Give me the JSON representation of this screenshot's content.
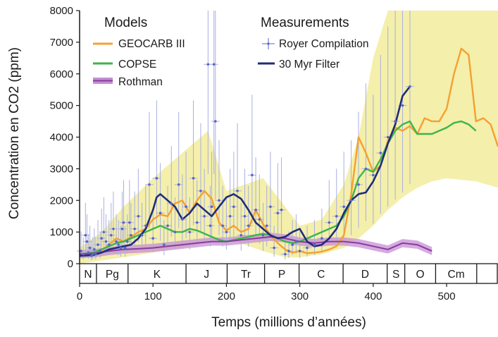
{
  "chart_data": {
    "type": "line",
    "title": "",
    "xlabel": "Temps (millions d’années)",
    "ylabel": "Concentration en CO2 (ppm)",
    "xlim": [
      0,
      570
    ],
    "ylim": [
      0,
      8000
    ],
    "x_ticks": [
      0,
      100,
      200,
      300,
      400,
      500
    ],
    "y_ticks": [
      0,
      1000,
      2000,
      3000,
      4000,
      5000,
      6000,
      7000,
      8000
    ],
    "grid": false,
    "legend": {
      "models_title": "Models",
      "measurements_title": "Measurements",
      "placement": "top"
    },
    "geological_periods": [
      {
        "label": "N",
        "start": 0,
        "end": 23
      },
      {
        "label": "Pg",
        "start": 23,
        "end": 66
      },
      {
        "label": "K",
        "start": 66,
        "end": 145
      },
      {
        "label": "J",
        "start": 145,
        "end": 201
      },
      {
        "label": "Tr",
        "start": 201,
        "end": 252
      },
      {
        "label": "P",
        "start": 252,
        "end": 299
      },
      {
        "label": "C",
        "start": 299,
        "end": 359
      },
      {
        "label": "D",
        "start": 359,
        "end": 419
      },
      {
        "label": "S",
        "start": 419,
        "end": 443
      },
      {
        "label": "O",
        "start": 443,
        "end": 485
      },
      {
        "label": "Cm",
        "start": 485,
        "end": 541
      }
    ],
    "series": [
      {
        "name": "GEOCARB III",
        "kind": "line",
        "color": "#f5a030",
        "x": [
          0,
          10,
          20,
          30,
          40,
          50,
          60,
          70,
          80,
          90,
          100,
          110,
          120,
          130,
          140,
          150,
          160,
          170,
          180,
          190,
          200,
          210,
          220,
          230,
          240,
          250,
          260,
          270,
          280,
          290,
          300,
          310,
          320,
          330,
          340,
          350,
          360,
          370,
          380,
          390,
          400,
          410,
          420,
          430,
          440,
          450,
          460,
          470,
          480,
          490,
          500,
          510,
          520,
          530,
          540,
          550,
          560,
          570
        ],
        "y": [
          280,
          300,
          330,
          420,
          600,
          800,
          700,
          850,
          1000,
          1100,
          1400,
          1550,
          1500,
          1900,
          2000,
          1600,
          2000,
          2300,
          2050,
          1300,
          1050,
          1200,
          1000,
          1100,
          1700,
          1250,
          900,
          650,
          450,
          350,
          400,
          330,
          350,
          380,
          450,
          550,
          900,
          2200,
          4000,
          3500,
          2900,
          3100,
          3900,
          4300,
          4200,
          4350,
          4100,
          4600,
          4500,
          4500,
          4900,
          6000,
          6800,
          6600,
          4500,
          4600,
          4400,
          3700
        ]
      },
      {
        "name": "COPSE",
        "kind": "line",
        "color": "#3db54a",
        "x": [
          0,
          10,
          20,
          30,
          40,
          50,
          60,
          70,
          80,
          90,
          100,
          110,
          120,
          130,
          140,
          150,
          160,
          170,
          180,
          190,
          200,
          210,
          220,
          230,
          240,
          250,
          260,
          270,
          280,
          290,
          300,
          310,
          320,
          330,
          340,
          350,
          360,
          370,
          380,
          390,
          400,
          410,
          420,
          430,
          440,
          450,
          460,
          470,
          480,
          490,
          500,
          510,
          520,
          530,
          540
        ],
        "y": [
          300,
          320,
          360,
          450,
          550,
          650,
          700,
          800,
          900,
          1000,
          1100,
          1200,
          1100,
          1000,
          1000,
          1100,
          1050,
          950,
          850,
          750,
          700,
          750,
          800,
          850,
          900,
          950,
          900,
          800,
          700,
          650,
          700,
          800,
          900,
          1000,
          1100,
          1200,
          1500,
          2000,
          2700,
          3000,
          2900,
          3300,
          3800,
          4200,
          4400,
          4500,
          4100,
          4100,
          4100,
          4200,
          4300,
          4450,
          4500,
          4400,
          4200
        ]
      },
      {
        "name": "Rothman",
        "kind": "band",
        "color": "#8b3a9e",
        "x": [
          0,
          20,
          40,
          60,
          80,
          100,
          120,
          140,
          160,
          180,
          200,
          220,
          240,
          260,
          280,
          300,
          320,
          340,
          360,
          380,
          400,
          420,
          440,
          460,
          480
        ],
        "y": [
          300,
          330,
          400,
          450,
          470,
          500,
          550,
          600,
          650,
          700,
          700,
          750,
          800,
          850,
          800,
          700,
          650,
          700,
          700,
          650,
          550,
          450,
          650,
          600,
          400
        ]
      },
      {
        "name": "Royer Compilation",
        "kind": "points",
        "color": "#5a64c8",
        "x": [
          2,
          5,
          8,
          10,
          12,
          14,
          16,
          18,
          20,
          22,
          25,
          28,
          30,
          33,
          36,
          40,
          43,
          46,
          50,
          53,
          56,
          58,
          60,
          62,
          65,
          68,
          70,
          75,
          80,
          85,
          90,
          95,
          100,
          105,
          110,
          115,
          120,
          125,
          130,
          135,
          140,
          145,
          150,
          155,
          160,
          165,
          170,
          175,
          178,
          180,
          183,
          185,
          190,
          195,
          200,
          205,
          210,
          215,
          220,
          225,
          230,
          235,
          240,
          245,
          250,
          255,
          260,
          265,
          270,
          275,
          280,
          285,
          290,
          295,
          300,
          310,
          320,
          330,
          340,
          350,
          360,
          370,
          380,
          390,
          400,
          410,
          420,
          430,
          440,
          450
        ],
        "y": [
          400,
          300,
          900,
          700,
          350,
          500,
          250,
          300,
          450,
          300,
          600,
          400,
          800,
          1000,
          700,
          600,
          900,
          1100,
          700,
          600,
          500,
          1100,
          1300,
          500,
          700,
          1300,
          900,
          1100,
          1500,
          900,
          1200,
          2500,
          800,
          2700,
          1600,
          600,
          1200,
          1900,
          1000,
          2500,
          1400,
          1800,
          1000,
          2700,
          1300,
          2300,
          1500,
          6300,
          1200,
          1800,
          6300,
          4500,
          2000,
          1200,
          1000,
          1500,
          1800,
          2300,
          900,
          1500,
          1200,
          2800,
          1700,
          1400,
          900,
          1200,
          1800,
          500,
          1600,
          1700,
          300,
          400,
          600,
          700,
          400,
          500,
          600,
          800,
          1300,
          1500,
          1800,
          2000,
          2500,
          3000,
          2800,
          3500,
          4000,
          4500,
          5000,
          5600
        ]
      },
      {
        "name": "30 Myr Filter",
        "kind": "line",
        "color": "#1f2d7a",
        "x": [
          0,
          10,
          20,
          30,
          40,
          50,
          60,
          70,
          80,
          90,
          100,
          105,
          110,
          120,
          130,
          140,
          150,
          160,
          170,
          180,
          190,
          200,
          210,
          220,
          230,
          240,
          250,
          260,
          270,
          280,
          290,
          300,
          310,
          320,
          330,
          340,
          350,
          360,
          370,
          380,
          390,
          400,
          410,
          420,
          430,
          440,
          450
        ],
        "y": [
          250,
          260,
          280,
          350,
          450,
          500,
          550,
          600,
          800,
          1100,
          1700,
          2100,
          2200,
          2000,
          1800,
          1400,
          1600,
          1900,
          1700,
          1500,
          1800,
          2100,
          2200,
          2050,
          1700,
          1300,
          1100,
          900,
          800,
          850,
          1000,
          1100,
          700,
          550,
          600,
          800,
          1100,
          1600,
          2000,
          2200,
          2250,
          2600,
          3100,
          3800,
          4400,
          5300,
          5600
        ]
      }
    ],
    "uncertainty_band": {
      "name": "GEOCARB III range",
      "color": "#f2ec9c",
      "x": [
        0,
        30,
        60,
        100,
        140,
        175,
        200,
        250,
        280,
        300,
        330,
        360,
        380,
        400,
        420,
        440,
        460,
        480,
        500,
        540,
        570
      ],
      "lower": [
        0,
        100,
        200,
        350,
        500,
        700,
        800,
        400,
        200,
        200,
        300,
        500,
        800,
        1200,
        1700,
        2100,
        2400,
        2600,
        2700,
        2600,
        2400
      ],
      "upper": [
        500,
        1000,
        1800,
        2700,
        3500,
        4200,
        2300,
        2700,
        1800,
        1200,
        1400,
        2500,
        4000,
        6500,
        8000,
        8000,
        8000,
        8000,
        8000,
        8000,
        8000
      ]
    }
  }
}
